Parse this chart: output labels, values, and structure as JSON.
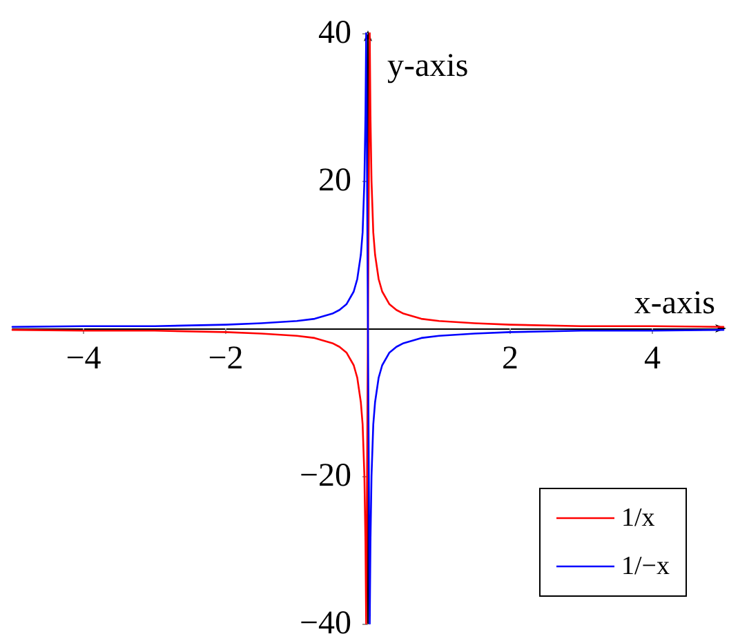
{
  "chart_data": {
    "type": "line",
    "xlabel": "x-axis",
    "ylabel": "y-axis",
    "x": [
      -5,
      -4,
      -3,
      -2,
      -1.5,
      -1,
      -0.75,
      -0.5,
      -0.4,
      -0.3,
      -0.2,
      -0.15,
      -0.1,
      -0.075,
      -0.05,
      -0.035,
      -0.025,
      0.025,
      0.035,
      0.05,
      0.075,
      0.1,
      0.15,
      0.2,
      0.3,
      0.4,
      0.5,
      0.75,
      1,
      1.5,
      2,
      3,
      4,
      5
    ],
    "series": [
      {
        "name": "1/x",
        "color": "#ff0000",
        "values": [
          -0.2,
          -0.3,
          -0.3,
          -0.5,
          -0.7,
          -1,
          -1.3,
          -2,
          -2.5,
          -3.3,
          -5,
          -6.7,
          -10,
          -13,
          -20,
          -29,
          -40,
          40,
          29,
          20,
          13,
          10,
          6.7,
          5,
          3.3,
          2.5,
          2,
          1.3,
          1,
          0.7,
          0.5,
          0.3,
          0.3,
          0.2
        ]
      },
      {
        "name": "1/−x",
        "color": "#0000ff",
        "values": [
          0.2,
          0.3,
          0.3,
          0.5,
          0.7,
          1,
          1.3,
          2,
          2.5,
          3.3,
          5,
          6.7,
          10,
          13,
          20,
          29,
          40,
          -40,
          -29,
          -20,
          -13,
          -10,
          -6.7,
          -5,
          -3.3,
          -2.5,
          -2,
          -1.3,
          -1,
          -0.7,
          -0.5,
          -0.3,
          -0.3,
          -0.2
        ]
      }
    ],
    "xlim": [
      -5,
      5
    ],
    "xticks": [
      -4,
      -2,
      2,
      4
    ],
    "ylim": [
      -40,
      40
    ],
    "yticks": [
      -40,
      -20,
      20,
      40
    ],
    "grid": false,
    "legend": "bottom right",
    "marker": "none",
    "line_style": "solid"
  }
}
